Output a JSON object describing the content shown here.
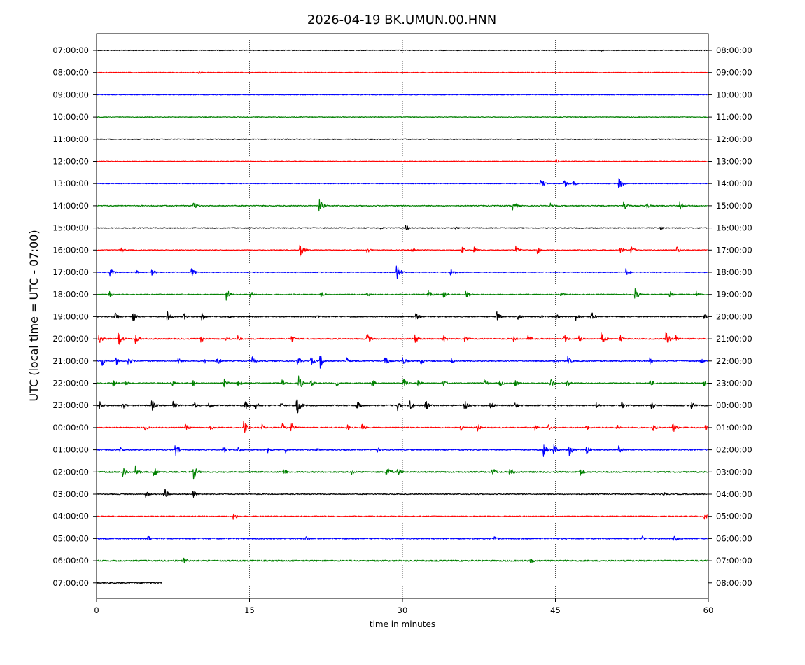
{
  "chart_data": {
    "type": "line",
    "title": "2026-04-19 BK.UMUN.00.HNN",
    "xlabel": "time in minutes",
    "ylabel": "UTC (local time = UTC - 07:00)",
    "xlim": [
      0,
      60
    ],
    "x_ticks": [
      0,
      15,
      30,
      45,
      60
    ],
    "x_tick_labels": [
      "0",
      "15",
      "30",
      "45",
      "60"
    ],
    "grid": "vertical dotted lines at 15, 30, 45",
    "colors": [
      "#000000",
      "#ff0000",
      "#0000ff",
      "#008000"
    ],
    "left_labels": [
      "07:00:00",
      "08:00:00",
      "09:00:00",
      "10:00:00",
      "11:00:00",
      "12:00:00",
      "13:00:00",
      "14:00:00",
      "15:00:00",
      "16:00:00",
      "17:00:00",
      "18:00:00",
      "19:00:00",
      "20:00:00",
      "21:00:00",
      "22:00:00",
      "23:00:00",
      "00:00:00",
      "01:00:00",
      "02:00:00",
      "03:00:00",
      "04:00:00",
      "05:00:00",
      "06:00:00",
      "07:00:00"
    ],
    "right_labels": [
      "08:00:00",
      "09:00:00",
      "10:00:00",
      "11:00:00",
      "12:00:00",
      "13:00:00",
      "14:00:00",
      "15:00:00",
      "16:00:00",
      "17:00:00",
      "18:00:00",
      "19:00:00",
      "20:00:00",
      "21:00:00",
      "22:00:00",
      "23:00:00",
      "00:00:00",
      "01:00:00",
      "02:00:00",
      "03:00:00",
      "04:00:00",
      "05:00:00",
      "06:00:00",
      "07:00:00",
      "08:00:00"
    ],
    "traces": [
      {
        "noise": 0.6,
        "end_minute": 60,
        "events": [
          [
            49.5,
            1.5
          ]
        ]
      },
      {
        "noise": 0.5,
        "end_minute": 60,
        "events": [
          [
            10,
            2.5
          ]
        ]
      },
      {
        "noise": 0.5,
        "end_minute": 60,
        "events": [
          [
            2,
            1.5
          ]
        ]
      },
      {
        "noise": 0.5,
        "end_minute": 60,
        "events": [
          [
            33,
            1
          ]
        ]
      },
      {
        "noise": 0.6,
        "end_minute": 60,
        "events": []
      },
      {
        "noise": 0.5,
        "end_minute": 60,
        "events": [
          [
            45,
            4
          ]
        ]
      },
      {
        "noise": 0.5,
        "end_minute": 60,
        "events": [
          [
            43.5,
            9
          ],
          [
            45.8,
            8
          ],
          [
            46.7,
            5
          ],
          [
            51.2,
            10
          ]
        ]
      },
      {
        "noise": 0.7,
        "end_minute": 60,
        "events": [
          [
            9.5,
            8
          ],
          [
            21.8,
            12
          ],
          [
            40.8,
            10
          ],
          [
            44.5,
            4
          ],
          [
            51.7,
            10
          ],
          [
            53.9,
            6
          ],
          [
            57.2,
            7
          ]
        ]
      },
      {
        "noise": 0.6,
        "end_minute": 60,
        "events": [
          [
            27.8,
            2.5
          ],
          [
            30.3,
            5
          ],
          [
            35.2,
            2.5
          ],
          [
            55.3,
            3
          ]
        ]
      },
      {
        "noise": 0.6,
        "end_minute": 60,
        "events": [
          [
            2.3,
            6
          ],
          [
            19.9,
            13
          ],
          [
            26.5,
            5
          ],
          [
            30.9,
            6
          ],
          [
            35.8,
            6
          ],
          [
            37,
            5
          ],
          [
            41.1,
            7
          ],
          [
            43.2,
            6
          ],
          [
            51.3,
            6
          ],
          [
            52.4,
            6
          ],
          [
            56.9,
            5
          ]
        ]
      },
      {
        "noise": 0.6,
        "end_minute": 60,
        "events": [
          [
            1.3,
            7
          ],
          [
            3.8,
            4
          ],
          [
            5.4,
            5
          ],
          [
            9.3,
            7
          ],
          [
            29.4,
            13
          ],
          [
            34.7,
            7
          ],
          [
            51.9,
            6
          ]
        ]
      },
      {
        "noise": 0.7,
        "end_minute": 60,
        "events": [
          [
            1.2,
            6
          ],
          [
            12.7,
            10
          ],
          [
            15,
            7
          ],
          [
            22,
            5
          ],
          [
            26.5,
            4
          ],
          [
            32.5,
            7
          ],
          [
            34,
            6
          ],
          [
            36.2,
            7
          ],
          [
            45.5,
            5
          ],
          [
            52.8,
            10
          ],
          [
            56.2,
            6
          ],
          [
            58.8,
            5
          ]
        ]
      },
      {
        "noise": 0.8,
        "end_minute": 60,
        "events": [
          [
            1.8,
            8
          ],
          [
            3.5,
            11
          ],
          [
            6.9,
            9
          ],
          [
            8.5,
            6
          ],
          [
            10.3,
            7
          ],
          [
            13,
            3
          ],
          [
            21.5,
            4
          ],
          [
            31.3,
            6
          ],
          [
            39.2,
            9
          ],
          [
            41.3,
            6
          ],
          [
            43.5,
            4
          ],
          [
            45,
            5
          ],
          [
            47,
            6
          ],
          [
            48.5,
            8
          ],
          [
            59.6,
            6
          ]
        ]
      },
      {
        "noise": 0.8,
        "end_minute": 60,
        "events": [
          [
            0.2,
            9
          ],
          [
            2.1,
            14
          ],
          [
            3.8,
            8
          ],
          [
            10.2,
            6
          ],
          [
            12.7,
            5
          ],
          [
            13.8,
            6
          ],
          [
            19.1,
            6
          ],
          [
            26.5,
            9
          ],
          [
            31.2,
            10
          ],
          [
            34,
            7
          ],
          [
            36.1,
            6
          ],
          [
            40.8,
            5
          ],
          [
            42.3,
            6
          ],
          [
            45.8,
            8
          ],
          [
            47.3,
            6
          ],
          [
            49.5,
            10
          ],
          [
            51.3,
            7
          ],
          [
            55.8,
            14
          ],
          [
            56.8,
            6
          ]
        ]
      },
      {
        "noise": 0.8,
        "end_minute": 60,
        "events": [
          [
            0.5,
            8
          ],
          [
            1.9,
            7
          ],
          [
            3.1,
            8
          ],
          [
            8,
            5
          ],
          [
            10.5,
            7
          ],
          [
            11.8,
            8
          ],
          [
            15.2,
            8
          ],
          [
            19.7,
            8
          ],
          [
            21,
            7
          ],
          [
            21.9,
            12
          ],
          [
            24.5,
            6
          ],
          [
            28.2,
            10
          ],
          [
            30,
            7
          ],
          [
            31.8,
            6
          ],
          [
            34.8,
            4
          ],
          [
            44.8,
            5
          ],
          [
            46.2,
            7
          ],
          [
            54.2,
            6
          ],
          [
            59.2,
            6
          ]
        ]
      },
      {
        "noise": 0.8,
        "end_minute": 60,
        "events": [
          [
            1.6,
            6
          ],
          [
            2.8,
            5
          ],
          [
            7.4,
            5
          ],
          [
            9.4,
            6
          ],
          [
            12.5,
            7
          ],
          [
            13.8,
            8
          ],
          [
            18.2,
            7
          ],
          [
            19.8,
            12
          ],
          [
            21,
            6
          ],
          [
            23.5,
            5
          ],
          [
            27,
            7
          ],
          [
            30.1,
            7
          ],
          [
            31.5,
            6
          ],
          [
            34,
            6
          ],
          [
            38,
            6
          ],
          [
            39.5,
            7
          ],
          [
            41,
            6
          ],
          [
            44.5,
            8
          ],
          [
            46.1,
            8
          ],
          [
            54.2,
            8
          ],
          [
            59.5,
            5
          ]
        ]
      },
      {
        "noise": 0.9,
        "end_minute": 60,
        "events": [
          [
            0.3,
            7
          ],
          [
            2.5,
            7
          ],
          [
            5.4,
            9
          ],
          [
            7.5,
            8
          ],
          [
            9.5,
            7
          ],
          [
            11,
            6
          ],
          [
            14.5,
            10
          ],
          [
            15.5,
            8
          ],
          [
            18,
            5
          ],
          [
            19.6,
            20
          ],
          [
            25.5,
            8
          ],
          [
            29.5,
            8
          ],
          [
            30.7,
            9
          ],
          [
            32.2,
            10
          ],
          [
            36,
            12
          ],
          [
            38.6,
            7
          ],
          [
            41,
            5
          ],
          [
            49,
            5
          ],
          [
            51.5,
            6
          ],
          [
            54.4,
            7
          ],
          [
            58.3,
            6
          ]
        ]
      },
      {
        "noise": 0.8,
        "end_minute": 60,
        "events": [
          [
            4.7,
            5
          ],
          [
            8.7,
            7
          ],
          [
            11,
            6
          ],
          [
            14.4,
            14
          ],
          [
            16.2,
            6
          ],
          [
            18.2,
            8
          ],
          [
            19,
            12
          ],
          [
            24.5,
            6
          ],
          [
            26,
            6
          ],
          [
            35.7,
            7
          ],
          [
            37.3,
            8
          ],
          [
            43,
            5
          ],
          [
            44.3,
            5
          ],
          [
            48,
            5
          ],
          [
            51,
            5
          ],
          [
            54.5,
            6
          ],
          [
            56.5,
            10
          ],
          [
            59.7,
            6
          ]
        ]
      },
      {
        "noise": 0.8,
        "end_minute": 60,
        "events": [
          [
            2.3,
            6
          ],
          [
            7.7,
            11
          ],
          [
            12.4,
            6
          ],
          [
            13.8,
            6
          ],
          [
            16.8,
            5
          ],
          [
            18.5,
            5
          ],
          [
            21.5,
            4
          ],
          [
            27.5,
            5
          ],
          [
            43.8,
            11
          ],
          [
            44.8,
            9
          ],
          [
            46.3,
            11
          ],
          [
            48,
            8
          ],
          [
            51.2,
            7
          ]
        ]
      },
      {
        "noise": 0.9,
        "end_minute": 60,
        "events": [
          [
            2.5,
            13
          ],
          [
            3.8,
            9
          ],
          [
            5.6,
            9
          ],
          [
            9.5,
            11
          ],
          [
            18.3,
            6
          ],
          [
            25,
            5
          ],
          [
            28.4,
            13
          ],
          [
            29.5,
            8
          ],
          [
            38.8,
            8
          ],
          [
            40.5,
            8
          ],
          [
            47.4,
            7
          ]
        ]
      },
      {
        "noise": 0.7,
        "end_minute": 60,
        "events": [
          [
            4.8,
            6
          ],
          [
            6.6,
            11
          ],
          [
            9.4,
            8
          ],
          [
            55.6,
            4
          ]
        ]
      },
      {
        "noise": 0.7,
        "end_minute": 60,
        "events": [
          [
            13.4,
            6
          ],
          [
            59.6,
            6
          ]
        ]
      },
      {
        "noise": 0.9,
        "end_minute": 60,
        "events": [
          [
            5,
            6
          ],
          [
            20.5,
            4
          ],
          [
            39,
            5
          ],
          [
            53.5,
            5
          ],
          [
            56.6,
            6
          ]
        ]
      },
      {
        "noise": 1.0,
        "end_minute": 60,
        "events": [
          [
            8.5,
            6
          ],
          [
            42.5,
            6
          ]
        ]
      },
      {
        "noise": 0.9,
        "end_minute": 6.5,
        "events": []
      }
    ]
  }
}
